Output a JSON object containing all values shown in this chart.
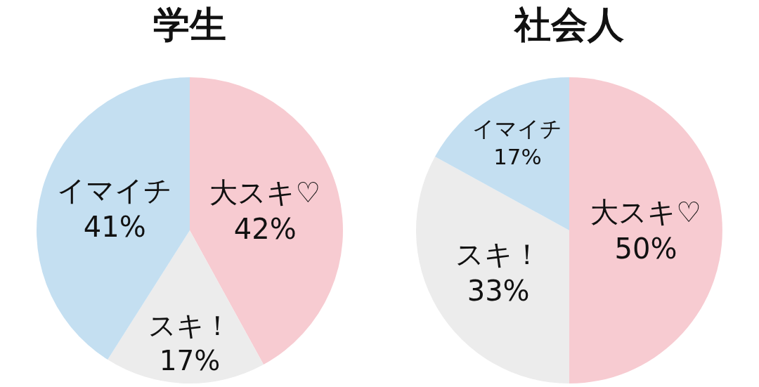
{
  "chart_data": [
    {
      "type": "pie",
      "title": "学生",
      "categories": [
        "大スキ♡",
        "スキ！",
        "イマイチ"
      ],
      "values": [
        42,
        17,
        41
      ],
      "value_labels": [
        "42%",
        "17%",
        "41%"
      ],
      "colors": [
        "#f7cbd1",
        "#ececec",
        "#c4dff1"
      ],
      "legend": false
    },
    {
      "type": "pie",
      "title": "社会人",
      "categories": [
        "大スキ♡",
        "スキ！",
        "イマイチ"
      ],
      "values": [
        50,
        33,
        17
      ],
      "value_labels": [
        "50%",
        "33%",
        "17%"
      ],
      "colors": [
        "#f7cbd1",
        "#ececec",
        "#c4dff1"
      ],
      "legend": false
    }
  ]
}
